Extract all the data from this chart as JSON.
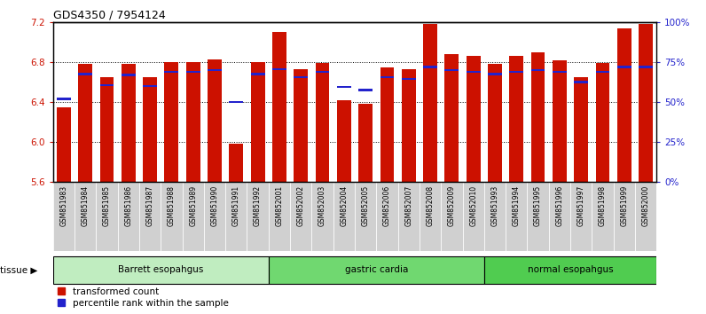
{
  "title": "GDS4350 / 7954124",
  "samples": [
    "GSM851983",
    "GSM851984",
    "GSM851985",
    "GSM851986",
    "GSM851987",
    "GSM851988",
    "GSM851989",
    "GSM851990",
    "GSM851991",
    "GSM851992",
    "GSM852001",
    "GSM852002",
    "GSM852003",
    "GSM852004",
    "GSM852005",
    "GSM852006",
    "GSM852007",
    "GSM852008",
    "GSM852009",
    "GSM852010",
    "GSM851993",
    "GSM851994",
    "GSM851995",
    "GSM851996",
    "GSM851997",
    "GSM851998",
    "GSM851999",
    "GSM852000"
  ],
  "red_values": [
    6.35,
    6.78,
    6.65,
    6.78,
    6.65,
    6.8,
    6.8,
    6.83,
    5.98,
    6.8,
    7.1,
    6.73,
    6.79,
    6.42,
    6.38,
    6.75,
    6.73,
    7.18,
    6.88,
    6.86,
    6.78,
    6.86,
    6.9,
    6.82,
    6.65,
    6.79,
    7.14,
    7.18
  ],
  "blue_values": [
    6.43,
    6.68,
    6.57,
    6.67,
    6.56,
    6.7,
    6.7,
    6.72,
    6.4,
    6.68,
    6.73,
    6.65,
    6.7,
    6.55,
    6.52,
    6.65,
    6.63,
    6.75,
    6.72,
    6.7,
    6.68,
    6.7,
    6.72,
    6.7,
    6.6,
    6.7,
    6.75,
    6.75
  ],
  "groups": [
    {
      "label": "Barrett esopahgus",
      "start": 0,
      "end": 10,
      "color": "#c0edc0"
    },
    {
      "label": "gastric cardia",
      "start": 10,
      "end": 20,
      "color": "#70d870"
    },
    {
      "label": "normal esopahgus",
      "start": 20,
      "end": 28,
      "color": "#50cc50"
    }
  ],
  "ylim": [
    5.6,
    7.2
  ],
  "yticks": [
    5.6,
    6.0,
    6.4,
    6.8,
    7.2
  ],
  "grid_lines": [
    6.0,
    6.4,
    6.8
  ],
  "right_yticks": [
    0,
    25,
    50,
    75,
    100
  ],
  "right_ytick_labels": [
    "0%",
    "25%",
    "50%",
    "75%",
    "100%"
  ],
  "bar_color": "#cc1100",
  "dot_color": "#2222cc",
  "bar_width": 0.65,
  "tick_bg_color": "#d0d0d0",
  "legend_items": [
    {
      "color": "#cc1100",
      "label": "transformed count"
    },
    {
      "color": "#2222cc",
      "label": "percentile rank within the sample"
    }
  ]
}
